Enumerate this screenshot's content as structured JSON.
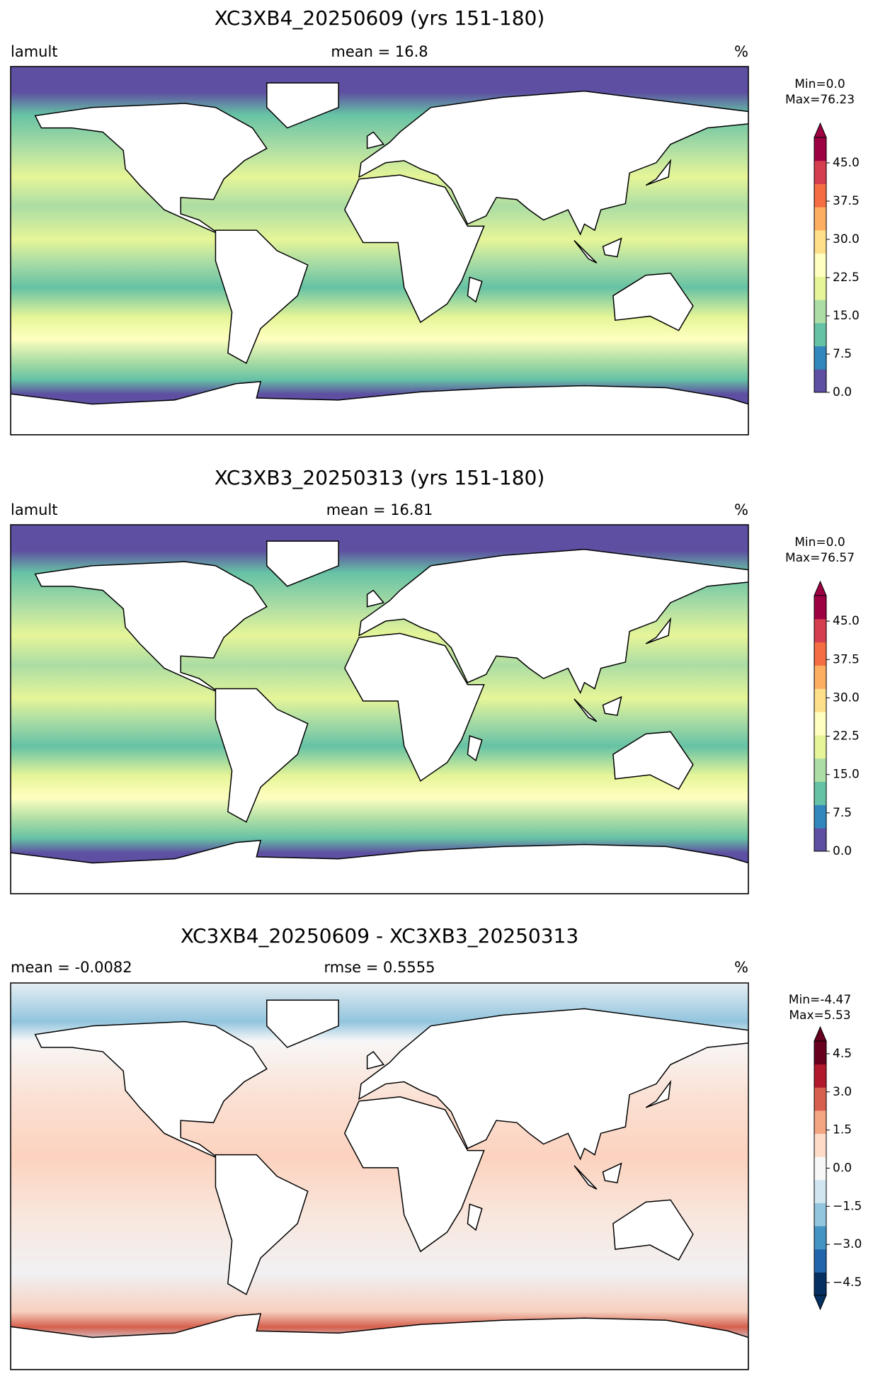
{
  "panels": [
    {
      "title": "XC3XB4_20250609 (yrs 151-180)",
      "left_label": "lamult",
      "center_label": "mean = 16.8",
      "right_label": "%",
      "colorbar": {
        "range_text": [
          "Min=0.0",
          "Max=76.23"
        ],
        "lim": [
          0,
          50
        ],
        "extend": "max",
        "ticks": [
          {
            "value": 0,
            "label": "0.0"
          },
          {
            "value": 7.5,
            "label": "7.5"
          },
          {
            "value": 15,
            "label": "15.0"
          },
          {
            "value": 22.5,
            "label": "22.5"
          },
          {
            "value": 30,
            "label": "30.0"
          },
          {
            "value": 37.5,
            "label": "37.5"
          },
          {
            "value": 45,
            "label": "45.0"
          }
        ],
        "colors": [
          "#5e4fa2",
          "#3288bd",
          "#66c2a5",
          "#abdda4",
          "#e6f598",
          "#ffffbf",
          "#fee08b",
          "#fdae61",
          "#f46d43",
          "#d53e4f",
          "#9e0142"
        ]
      }
    },
    {
      "title": "XC3XB3_20250313 (yrs 151-180)",
      "left_label": "lamult",
      "center_label": "mean = 16.81",
      "right_label": "%",
      "colorbar": {
        "range_text": [
          "Min=0.0",
          "Max=76.57"
        ],
        "lim": [
          0,
          50
        ],
        "extend": "max",
        "ticks": [
          {
            "value": 0,
            "label": "0.0"
          },
          {
            "value": 7.5,
            "label": "7.5"
          },
          {
            "value": 15,
            "label": "15.0"
          },
          {
            "value": 22.5,
            "label": "22.5"
          },
          {
            "value": 30,
            "label": "30.0"
          },
          {
            "value": 37.5,
            "label": "37.5"
          },
          {
            "value": 45,
            "label": "45.0"
          }
        ],
        "colors": [
          "#5e4fa2",
          "#3288bd",
          "#66c2a5",
          "#abdda4",
          "#e6f598",
          "#ffffbf",
          "#fee08b",
          "#fdae61",
          "#f46d43",
          "#d53e4f",
          "#9e0142"
        ]
      }
    },
    {
      "title": "XC3XB4_20250609 - XC3XB3_20250313",
      "left_label": "mean = -0.0082",
      "center_label": "rmse = 0.5555",
      "right_label": "%",
      "colorbar": {
        "range_text": [
          "Min=-4.47",
          "Max=5.53"
        ],
        "lim": [
          -5,
          5
        ],
        "extend": "both",
        "ticks": [
          {
            "value": -4.5,
            "label": "−4.5"
          },
          {
            "value": -3,
            "label": "−3.0"
          },
          {
            "value": -1.5,
            "label": "−1.5"
          },
          {
            "value": 0,
            "label": "0.0"
          },
          {
            "value": 1.5,
            "label": "1.5"
          },
          {
            "value": 3,
            "label": "3.0"
          },
          {
            "value": 4.5,
            "label": "4.5"
          }
        ],
        "colors": [
          "#053061",
          "#2166ac",
          "#4393c3",
          "#92c5de",
          "#d1e5f0",
          "#f7f7f7",
          "#fddbc7",
          "#f4a582",
          "#d6604d",
          "#b2182b",
          "#67001f"
        ]
      }
    }
  ]
}
